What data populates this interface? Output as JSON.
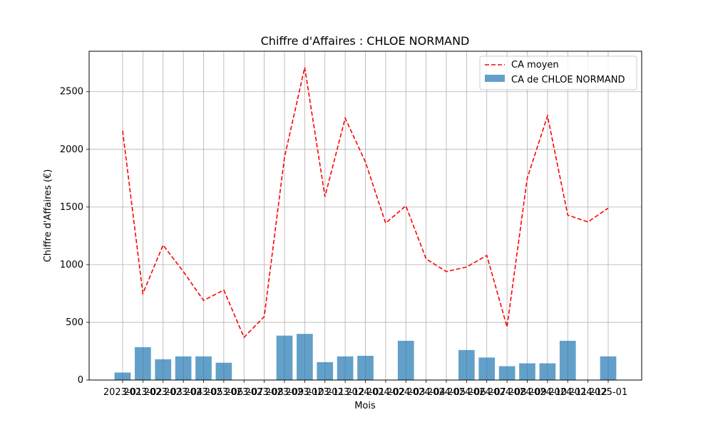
{
  "chart_data": {
    "type": "bar",
    "title": "Chiffre d'Affaires : CHLOE NORMAND",
    "xlabel": "Mois",
    "ylabel": "Chiffre d'Affaires (€)",
    "categories": [
      "2023-01",
      "2023-02",
      "2023-03",
      "2023-04",
      "2023-05",
      "2023-06",
      "2023-07",
      "2023-08",
      "2023-09",
      "2023-10",
      "2023-11",
      "2023-12",
      "2024-01",
      "2024-02",
      "2024-03",
      "2024-04",
      "2024-05",
      "2024-06",
      "2024-07",
      "2024-08",
      "2024-09",
      "2024-10",
      "2024-11",
      "2024-12",
      "2025-01"
    ],
    "ylim": [
      0,
      2850
    ],
    "yticks": [
      0,
      500,
      1000,
      1500,
      2000,
      2500
    ],
    "grid": true,
    "legend_position": "upper right",
    "series": [
      {
        "name": "CA moyen",
        "kind": "line",
        "style": "dashed",
        "color": "#ff0000",
        "values": [
          2160,
          750,
          1170,
          940,
          690,
          780,
          370,
          550,
          1930,
          2710,
          1590,
          2270,
          1890,
          1360,
          1510,
          1050,
          940,
          980,
          1080,
          460,
          1750,
          2290,
          1430,
          1370,
          1490
        ]
      },
      {
        "name": "CA de CHLOE NORMAND",
        "kind": "bar",
        "color": "#1f77b4",
        "opacity": 0.7,
        "values": [
          65,
          285,
          180,
          205,
          205,
          150,
          0,
          0,
          385,
          400,
          155,
          205,
          210,
          0,
          340,
          0,
          0,
          260,
          195,
          120,
          145,
          145,
          340,
          0,
          205
        ]
      }
    ]
  }
}
